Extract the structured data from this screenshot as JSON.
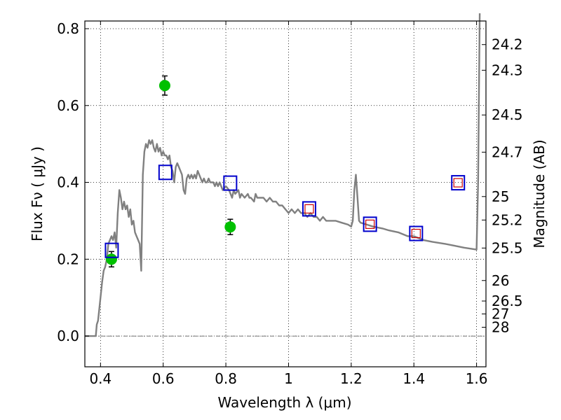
{
  "chart_data": {
    "type": "scatter",
    "xlabel": "Wavelength  λ (μm)",
    "ylabel": "Flux  Fν  ( μJy )",
    "y2label": "Magnitude (AB)",
    "xlim": [
      0.35,
      1.63
    ],
    "ylim": [
      -0.08,
      0.82
    ],
    "grid": true,
    "x_ticks": [
      "0.4",
      "0.6",
      "0.8",
      "1",
      "1.2",
      "1.4",
      "1.6"
    ],
    "x_tick_values": [
      0.4,
      0.6,
      0.8,
      1.0,
      1.2,
      1.4,
      1.6
    ],
    "y_ticks": [
      "0.0",
      "0.2",
      "0.4",
      "0.6",
      "0.8"
    ],
    "y_tick_values": [
      0.0,
      0.2,
      0.4,
      0.6,
      0.8
    ],
    "mag_ticks": [
      "24.2",
      "24.3",
      "24.5",
      "24.7",
      "25",
      "25.2",
      "25.5",
      "26",
      "26.5",
      "27",
      "28"
    ],
    "mag_tick_values": [
      24.2,
      24.3,
      24.5,
      24.7,
      25.0,
      25.2,
      25.5,
      26.0,
      26.5,
      27.0,
      28.0
    ],
    "colors": {
      "model": "#808080",
      "observed": "#00c000",
      "model_photometry": "#0000cc",
      "synthetic": "#cc0000"
    },
    "series": [
      {
        "type": "line",
        "color": "#808080",
        "points": [
          [
            0.35,
            0.0
          ],
          [
            0.385,
            0.0
          ],
          [
            0.388,
            0.03
          ],
          [
            0.392,
            0.04
          ],
          [
            0.4,
            0.1
          ],
          [
            0.405,
            0.14
          ],
          [
            0.41,
            0.17
          ],
          [
            0.415,
            0.18
          ],
          [
            0.42,
            0.2
          ],
          [
            0.425,
            0.24
          ],
          [
            0.43,
            0.25
          ],
          [
            0.435,
            0.26
          ],
          [
            0.44,
            0.25
          ],
          [
            0.445,
            0.27
          ],
          [
            0.45,
            0.23
          ],
          [
            0.455,
            0.32
          ],
          [
            0.46,
            0.38
          ],
          [
            0.465,
            0.36
          ],
          [
            0.47,
            0.33
          ],
          [
            0.475,
            0.35
          ],
          [
            0.48,
            0.33
          ],
          [
            0.485,
            0.34
          ],
          [
            0.49,
            0.31
          ],
          [
            0.495,
            0.33
          ],
          [
            0.5,
            0.29
          ],
          [
            0.505,
            0.3
          ],
          [
            0.51,
            0.27
          ],
          [
            0.515,
            0.26
          ],
          [
            0.52,
            0.25
          ],
          [
            0.525,
            0.24
          ],
          [
            0.53,
            0.17
          ],
          [
            0.535,
            0.42
          ],
          [
            0.54,
            0.48
          ],
          [
            0.545,
            0.5
          ],
          [
            0.55,
            0.49
          ],
          [
            0.555,
            0.51
          ],
          [
            0.56,
            0.5
          ],
          [
            0.565,
            0.51
          ],
          [
            0.57,
            0.49
          ],
          [
            0.575,
            0.48
          ],
          [
            0.58,
            0.5
          ],
          [
            0.585,
            0.48
          ],
          [
            0.59,
            0.49
          ],
          [
            0.595,
            0.47
          ],
          [
            0.6,
            0.48
          ],
          [
            0.605,
            0.47
          ],
          [
            0.61,
            0.47
          ],
          [
            0.615,
            0.46
          ],
          [
            0.62,
            0.47
          ],
          [
            0.625,
            0.44
          ],
          [
            0.63,
            0.43
          ],
          [
            0.635,
            0.4
          ],
          [
            0.64,
            0.44
          ],
          [
            0.645,
            0.45
          ],
          [
            0.65,
            0.44
          ],
          [
            0.655,
            0.43
          ],
          [
            0.66,
            0.42
          ],
          [
            0.665,
            0.38
          ],
          [
            0.67,
            0.37
          ],
          [
            0.675,
            0.41
          ],
          [
            0.68,
            0.42
          ],
          [
            0.685,
            0.41
          ],
          [
            0.69,
            0.42
          ],
          [
            0.695,
            0.41
          ],
          [
            0.7,
            0.42
          ],
          [
            0.705,
            0.41
          ],
          [
            0.71,
            0.43
          ],
          [
            0.715,
            0.42
          ],
          [
            0.72,
            0.41
          ],
          [
            0.725,
            0.4
          ],
          [
            0.73,
            0.41
          ],
          [
            0.735,
            0.4
          ],
          [
            0.74,
            0.4
          ],
          [
            0.745,
            0.41
          ],
          [
            0.75,
            0.4
          ],
          [
            0.76,
            0.4
          ],
          [
            0.765,
            0.39
          ],
          [
            0.77,
            0.4
          ],
          [
            0.775,
            0.39
          ],
          [
            0.78,
            0.4
          ],
          [
            0.79,
            0.38
          ],
          [
            0.8,
            0.39
          ],
          [
            0.81,
            0.38
          ],
          [
            0.815,
            0.37
          ],
          [
            0.82,
            0.36
          ],
          [
            0.825,
            0.38
          ],
          [
            0.83,
            0.37
          ],
          [
            0.84,
            0.38
          ],
          [
            0.845,
            0.36
          ],
          [
            0.85,
            0.37
          ],
          [
            0.86,
            0.36
          ],
          [
            0.87,
            0.37
          ],
          [
            0.875,
            0.36
          ],
          [
            0.88,
            0.36
          ],
          [
            0.89,
            0.35
          ],
          [
            0.895,
            0.37
          ],
          [
            0.9,
            0.36
          ],
          [
            0.92,
            0.36
          ],
          [
            0.93,
            0.35
          ],
          [
            0.94,
            0.36
          ],
          [
            0.95,
            0.35
          ],
          [
            0.96,
            0.35
          ],
          [
            0.97,
            0.34
          ],
          [
            0.98,
            0.34
          ],
          [
            0.99,
            0.33
          ],
          [
            1.0,
            0.32
          ],
          [
            1.01,
            0.33
          ],
          [
            1.02,
            0.32
          ],
          [
            1.03,
            0.33
          ],
          [
            1.04,
            0.32
          ],
          [
            1.05,
            0.32
          ],
          [
            1.06,
            0.31
          ],
          [
            1.07,
            0.32
          ],
          [
            1.08,
            0.31
          ],
          [
            1.09,
            0.31
          ],
          [
            1.1,
            0.3
          ],
          [
            1.11,
            0.31
          ],
          [
            1.12,
            0.3
          ],
          [
            1.13,
            0.3
          ],
          [
            1.15,
            0.3
          ],
          [
            1.17,
            0.295
          ],
          [
            1.19,
            0.29
          ],
          [
            1.2,
            0.285
          ],
          [
            1.205,
            0.3
          ],
          [
            1.21,
            0.38
          ],
          [
            1.215,
            0.42
          ],
          [
            1.22,
            0.36
          ],
          [
            1.225,
            0.3
          ],
          [
            1.23,
            0.295
          ],
          [
            1.25,
            0.29
          ],
          [
            1.27,
            0.285
          ],
          [
            1.3,
            0.28
          ],
          [
            1.32,
            0.275
          ],
          [
            1.35,
            0.27
          ],
          [
            1.38,
            0.26
          ],
          [
            1.4,
            0.26
          ],
          [
            1.43,
            0.25
          ],
          [
            1.46,
            0.245
          ],
          [
            1.5,
            0.24
          ],
          [
            1.53,
            0.235
          ],
          [
            1.56,
            0.23
          ],
          [
            1.6,
            0.225
          ],
          [
            1.605,
            0.4
          ],
          [
            1.61,
            0.84
          ]
        ]
      },
      {
        "type": "scatter",
        "color": "#00c000",
        "points": [
          {
            "x": 0.435,
            "y": 0.2,
            "yerr": 0.02
          },
          {
            "x": 0.605,
            "y": 0.652,
            "yerr": 0.025
          },
          {
            "x": 0.814,
            "y": 0.284,
            "yerr": 0.02
          }
        ]
      },
      {
        "type": "scatter",
        "color": "#0000cc",
        "marker": "open-square",
        "points": [
          {
            "x": 0.436,
            "y": 0.223
          },
          {
            "x": 0.607,
            "y": 0.426
          },
          {
            "x": 0.814,
            "y": 0.398
          },
          {
            "x": 1.066,
            "y": 0.331
          },
          {
            "x": 1.26,
            "y": 0.291
          },
          {
            "x": 1.407,
            "y": 0.267
          },
          {
            "x": 1.541,
            "y": 0.399
          }
        ]
      },
      {
        "type": "scatter",
        "color": "#cc0000",
        "marker": "open-square-small",
        "points": [
          {
            "x": 1.066,
            "y": 0.331
          },
          {
            "x": 1.26,
            "y": 0.291
          },
          {
            "x": 1.407,
            "y": 0.267
          },
          {
            "x": 1.541,
            "y": 0.399
          }
        ]
      }
    ]
  }
}
